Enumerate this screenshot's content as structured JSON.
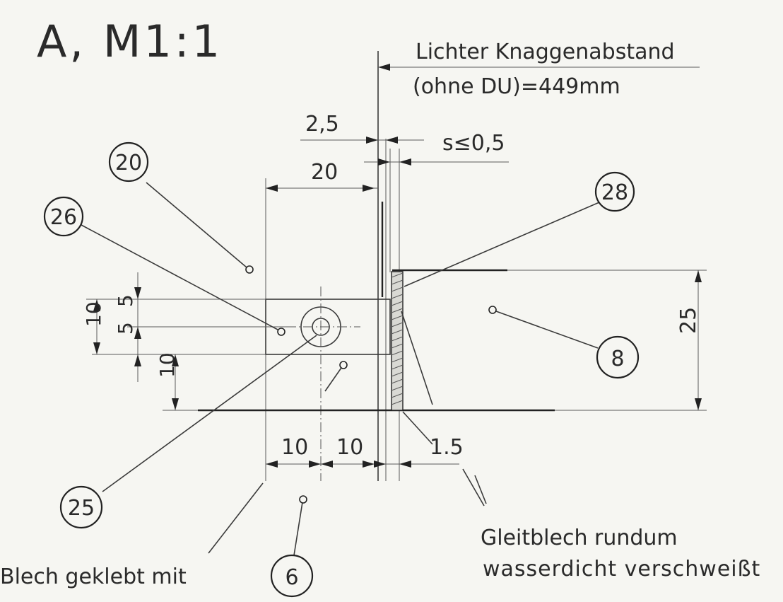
{
  "drawing": {
    "title": "A, M1:1",
    "note_top": {
      "line1": "Lichter Knaggenabstand",
      "line2": "(ohne DU)=449mm"
    },
    "dimensions": {
      "d_2_5": "2,5",
      "d_s": "s≤0,5",
      "d_20": "20",
      "d_10_left": "10",
      "d_5_upper": "5",
      "d_5_lower": "5",
      "d_10_lower": "10",
      "d_25": "25",
      "d_10_a": "10",
      "d_10_b": "10",
      "d_1_5": "1.5"
    },
    "callouts": {
      "c20": "20",
      "c26": "26",
      "c28": "28",
      "c8": "8",
      "c25": "25",
      "c6": "6"
    },
    "note_bottom_right": {
      "line1": "Gleitblech rundum",
      "line2": "wasserdicht verschweißt"
    },
    "note_bottom_left": {
      "line1": "Blech geklebt mit"
    }
  }
}
